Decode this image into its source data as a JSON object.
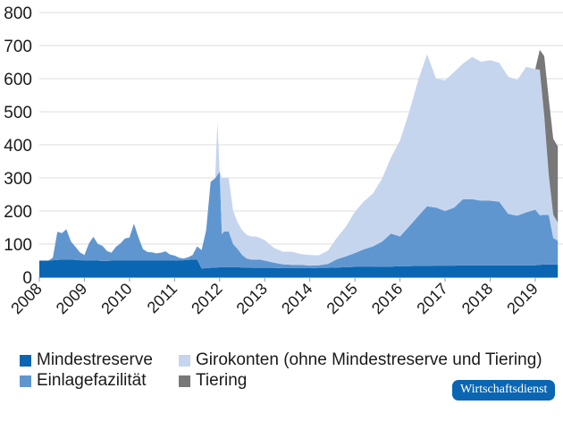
{
  "chart_data": {
    "type": "area",
    "stacked": true,
    "title": "",
    "xlabel": "",
    "ylabel": "",
    "ylim": [
      0,
      800
    ],
    "xlim": [
      2008.0,
      2019.5
    ],
    "yticks": [
      0,
      100,
      200,
      300,
      400,
      500,
      600,
      700,
      800
    ],
    "xticks": [
      "2008",
      "2009",
      "2010",
      "2011",
      "2012",
      "2013",
      "2014",
      "2015",
      "2016",
      "2017",
      "2018",
      "2019"
    ],
    "grid": true,
    "legend_position": "bottom",
    "x": [
      2008.0,
      2008.2,
      2008.3,
      2008.4,
      2008.5,
      2008.6,
      2008.7,
      2008.8,
      2008.9,
      2009.0,
      2009.1,
      2009.2,
      2009.3,
      2009.4,
      2009.5,
      2009.6,
      2009.7,
      2009.8,
      2009.9,
      2010.0,
      2010.1,
      2010.2,
      2010.3,
      2010.4,
      2010.5,
      2010.6,
      2010.7,
      2010.8,
      2010.9,
      2011.0,
      2011.1,
      2011.2,
      2011.3,
      2011.4,
      2011.5,
      2011.6,
      2011.7,
      2011.8,
      2011.9,
      2011.95,
      2012.0,
      2012.05,
      2012.1,
      2012.2,
      2012.3,
      2012.4,
      2012.5,
      2012.6,
      2012.7,
      2012.8,
      2012.9,
      2013.0,
      2013.2,
      2013.4,
      2013.6,
      2013.8,
      2014.0,
      2014.2,
      2014.4,
      2014.6,
      2014.8,
      2015.0,
      2015.2,
      2015.4,
      2015.6,
      2015.8,
      2016.0,
      2016.2,
      2016.4,
      2016.6,
      2016.8,
      2017.0,
      2017.2,
      2017.4,
      2017.6,
      2017.8,
      2018.0,
      2018.2,
      2018.4,
      2018.6,
      2018.8,
      2019.0,
      2019.1,
      2019.2,
      2019.3,
      2019.4,
      2019.5
    ],
    "series": [
      {
        "name": "Mindestreserve",
        "color": "#0a66b2",
        "values": [
          50,
          50,
          51,
          52,
          53,
          53,
          53,
          52,
          51,
          51,
          50,
          50,
          50,
          49,
          49,
          50,
          50,
          50,
          50,
          50,
          50,
          50,
          50,
          50,
          50,
          50,
          50,
          50,
          50,
          50,
          51,
          51,
          52,
          53,
          53,
          26,
          27,
          28,
          29,
          29,
          30,
          30,
          30,
          30,
          30,
          30,
          29,
          29,
          28,
          28,
          28,
          28,
          28,
          27,
          27,
          27,
          27,
          28,
          28,
          29,
          30,
          31,
          31,
          31,
          32,
          32,
          33,
          33,
          34,
          34,
          35,
          35,
          35,
          36,
          36,
          36,
          36,
          36,
          36,
          36,
          36,
          36,
          37,
          38,
          38,
          38,
          38
        ]
      },
      {
        "name": "Einlagefazilität",
        "color": "#6096cf",
        "values": [
          0,
          0,
          8,
          85,
          80,
          92,
          55,
          40,
          24,
          16,
          52,
          72,
          50,
          46,
          30,
          24,
          42,
          52,
          67,
          70,
          112,
          70,
          35,
          26,
          25,
          22,
          24,
          28,
          18,
          15,
          8,
          5,
          8,
          14,
          40,
          56,
          115,
          260,
          270,
          280,
          290,
          100,
          108,
          108,
          70,
          55,
          38,
          27,
          25,
          25,
          25,
          22,
          16,
          12,
          10,
          10,
          8,
          8,
          12,
          25,
          33,
          42,
          53,
          62,
          75,
          100,
          90,
          120,
          150,
          180,
          175,
          165,
          175,
          200,
          200,
          195,
          195,
          192,
          155,
          150,
          160,
          168,
          150,
          150,
          150,
          80,
          72
        ]
      },
      {
        "name": "Girokonten (ohne Mindestreserve und Tiering)",
        "color": "#c6d5ee",
        "values": [
          0,
          0,
          0,
          0,
          0,
          0,
          0,
          0,
          0,
          0,
          0,
          0,
          0,
          0,
          0,
          0,
          0,
          0,
          0,
          0,
          0,
          0,
          0,
          0,
          0,
          0,
          0,
          0,
          0,
          0,
          0,
          0,
          0,
          0,
          0,
          0,
          0,
          0,
          0,
          160,
          0,
          170,
          162,
          162,
          100,
          80,
          75,
          72,
          70,
          70,
          65,
          62,
          45,
          38,
          40,
          33,
          32,
          30,
          40,
          65,
          90,
          125,
          145,
          160,
          190,
          230,
          290,
          345,
          410,
          460,
          390,
          395,
          410,
          410,
          430,
          420,
          425,
          420,
          415,
          410,
          440,
          425,
          440,
          300,
          120,
          70,
          55
        ]
      },
      {
        "name": "Tiering",
        "color": "#787878",
        "values": [
          0,
          0,
          0,
          0,
          0,
          0,
          0,
          0,
          0,
          0,
          0,
          0,
          0,
          0,
          0,
          0,
          0,
          0,
          0,
          0,
          0,
          0,
          0,
          0,
          0,
          0,
          0,
          0,
          0,
          0,
          0,
          0,
          0,
          0,
          0,
          0,
          0,
          0,
          0,
          0,
          0,
          0,
          0,
          0,
          0,
          0,
          0,
          0,
          0,
          0,
          0,
          0,
          0,
          0,
          0,
          0,
          0,
          0,
          0,
          0,
          0,
          0,
          0,
          0,
          0,
          0,
          0,
          0,
          0,
          0,
          0,
          0,
          0,
          0,
          0,
          0,
          0,
          0,
          0,
          0,
          0,
          0,
          60,
          180,
          230,
          230,
          230
        ]
      }
    ]
  },
  "axis": {
    "y_labels": [
      "0",
      "100",
      "200",
      "300",
      "400",
      "500",
      "600",
      "700",
      "800"
    ],
    "x_labels": [
      "2008",
      "2009",
      "2010",
      "2011",
      "2012",
      "2013",
      "2014",
      "2015",
      "2016",
      "2017",
      "2018",
      "2019"
    ]
  },
  "legend": {
    "items": [
      {
        "label": "Mindestreserve",
        "color": "#0a66b2"
      },
      {
        "label": "Girokonten (ohne Mindestreserve und Tiering)",
        "color": "#c6d5ee"
      },
      {
        "label": "Einlagefazilität",
        "color": "#6096cf"
      },
      {
        "label": "Tiering",
        "color": "#787878"
      }
    ]
  },
  "badge": {
    "label": "Wirtschaftsdienst",
    "color": "#0a66b2"
  }
}
